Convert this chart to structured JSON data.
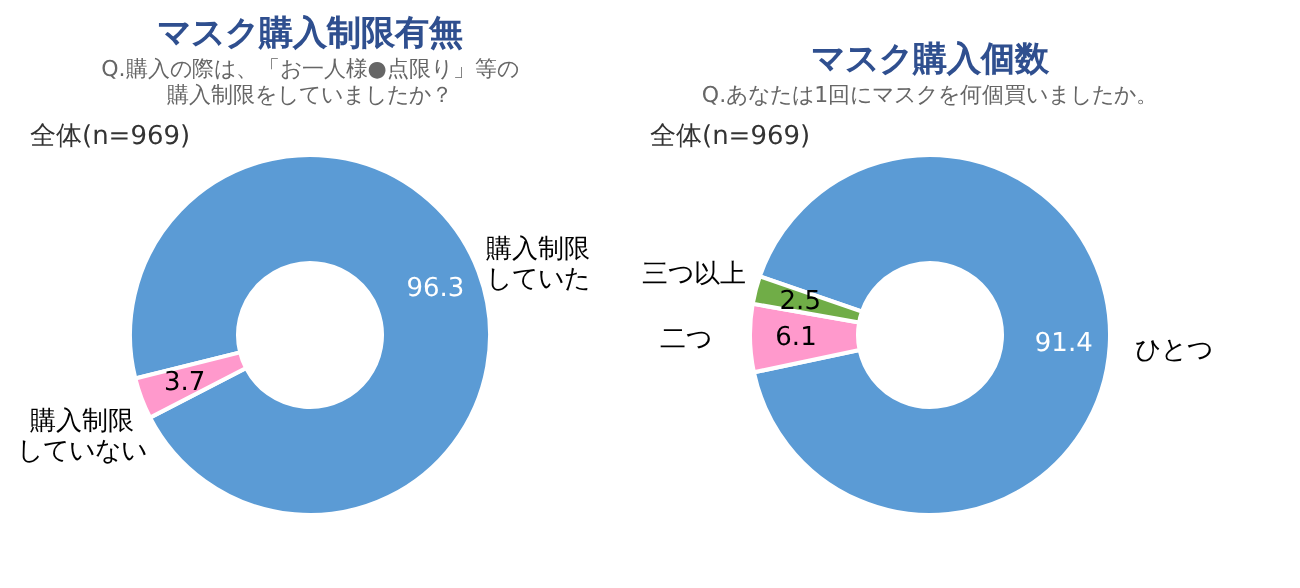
{
  "chart_data": [
    {
      "type": "donut",
      "title": "マスク購入制限有無",
      "subtitle": "Q.購入の際は、「お一人様●点限り」等の購入制限をしていましたか？",
      "annotations": [
        "全体(n=969)"
      ],
      "categories": [
        "購入制限していた",
        "購入制限していない"
      ],
      "values": [
        96.3,
        3.7
      ],
      "colors": [
        "#5b9bd5",
        "#ff99cc"
      ],
      "data_labels": true
    },
    {
      "type": "donut",
      "title": "マスク購入個数",
      "subtitle": "Q.あなたは1回にマスクを何個買いましたか。",
      "annotations": [
        "全体(n=969)"
      ],
      "categories": [
        "ひとつ",
        "二つ",
        "三つ以上"
      ],
      "values": [
        91.4,
        6.1,
        2.5
      ],
      "colors": [
        "#5b9bd5",
        "#ff99cc",
        "#70ad47"
      ],
      "data_labels": true
    }
  ]
}
